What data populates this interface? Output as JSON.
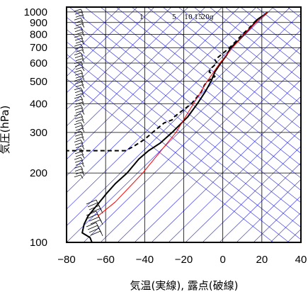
{
  "chart_data": {
    "type": "line",
    "subtype": "skew-T log-p thermodynamic diagram",
    "xlabel": "気温(実線), 露点(破線)",
    "ylabel": "気圧(hPa)",
    "x_ticks": [
      -80,
      -60,
      -40,
      -20,
      0,
      20,
      40
    ],
    "xlim": [
      -80,
      40
    ],
    "y_scale": "log",
    "y_ticks": [
      100,
      200,
      300,
      400,
      500,
      600,
      700,
      800,
      900,
      1000
    ],
    "ylim": [
      1050,
      100
    ],
    "mixing_ratio_labels": [
      "1",
      "5",
      "10",
      "15",
      "20g"
    ],
    "grid": true,
    "colors": {
      "temperature": "#000000",
      "dewpoint": "#000000",
      "reference_line": "#ff0000",
      "background_lines": "#2828e6",
      "grid": "#000000"
    },
    "series": [
      {
        "key": "temperature",
        "style": "solid",
        "points": [
          {
            "p": 1000,
            "x": 23
          },
          {
            "p": 975,
            "x": 21.5
          },
          {
            "p": 950,
            "x": 19.5
          },
          {
            "p": 925,
            "x": 17.5
          },
          {
            "p": 900,
            "x": 16.5
          },
          {
            "p": 850,
            "x": 14
          },
          {
            "p": 800,
            "x": 11
          },
          {
            "p": 750,
            "x": 8
          },
          {
            "p": 700,
            "x": 4
          },
          {
            "p": 650,
            "x": 2
          },
          {
            "p": 600,
            "x": -1
          },
          {
            "p": 550,
            "x": -4
          },
          {
            "p": 500,
            "x": -6
          },
          {
            "p": 450,
            "x": -9
          },
          {
            "p": 400,
            "x": -13
          },
          {
            "p": 350,
            "x": -18
          },
          {
            "p": 300,
            "x": -26
          },
          {
            "p": 270,
            "x": -32
          },
          {
            "p": 250,
            "x": -38
          },
          {
            "p": 230,
            "x": -43
          },
          {
            "p": 200,
            "x": -49
          },
          {
            "p": 180,
            "x": -55
          },
          {
            "p": 165,
            "x": -59
          },
          {
            "p": 150,
            "x": -63
          },
          {
            "p": 130,
            "x": -69
          },
          {
            "p": 120,
            "x": -71
          },
          {
            "p": 110,
            "x": -72
          },
          {
            "p": 105,
            "x": -68
          },
          {
            "p": 100,
            "x": -67
          }
        ]
      },
      {
        "key": "dewpoint",
        "style": "dashed",
        "points": [
          {
            "p": 1000,
            "x": 23
          },
          {
            "p": 975,
            "x": 21.5
          },
          {
            "p": 950,
            "x": 19.5
          },
          {
            "p": 925,
            "x": 17.5
          },
          {
            "p": 900,
            "x": 16
          },
          {
            "p": 850,
            "x": 13.5
          },
          {
            "p": 800,
            "x": 10
          },
          {
            "p": 750,
            "x": 7
          },
          {
            "p": 700,
            "x": 3.5
          },
          {
            "p": 650,
            "x": -1
          },
          {
            "p": 620,
            "x": -4
          },
          {
            "p": 600,
            "x": -3
          },
          {
            "p": 570,
            "x": -6
          },
          {
            "p": 550,
            "x": -7
          },
          {
            "p": 525,
            "x": -4
          },
          {
            "p": 500,
            "x": -8
          },
          {
            "p": 480,
            "x": -9.5
          },
          {
            "p": 450,
            "x": -11
          },
          {
            "p": 400,
            "x": -16
          },
          {
            "p": 350,
            "x": -25
          },
          {
            "p": 340,
            "x": -26
          },
          {
            "p": 330,
            "x": -30
          },
          {
            "p": 300,
            "x": -36
          },
          {
            "p": 280,
            "x": -40
          },
          {
            "p": 260,
            "x": -46
          },
          {
            "p": 250,
            "x": -50
          },
          {
            "p": 250,
            "x": -80
          }
        ]
      },
      {
        "key": "reference_line",
        "style": "solid",
        "points": [
          {
            "p": 1000,
            "x": 23
          },
          {
            "p": 900,
            "x": 17
          },
          {
            "p": 800,
            "x": 11
          },
          {
            "p": 700,
            "x": 5
          },
          {
            "p": 600,
            "x": -1.5
          },
          {
            "p": 500,
            "x": -8
          },
          {
            "p": 400,
            "x": -15
          },
          {
            "p": 300,
            "x": -24
          },
          {
            "p": 200,
            "x": -41
          },
          {
            "p": 150,
            "x": -55
          },
          {
            "p": 130,
            "x": -64
          }
        ]
      }
    ]
  }
}
